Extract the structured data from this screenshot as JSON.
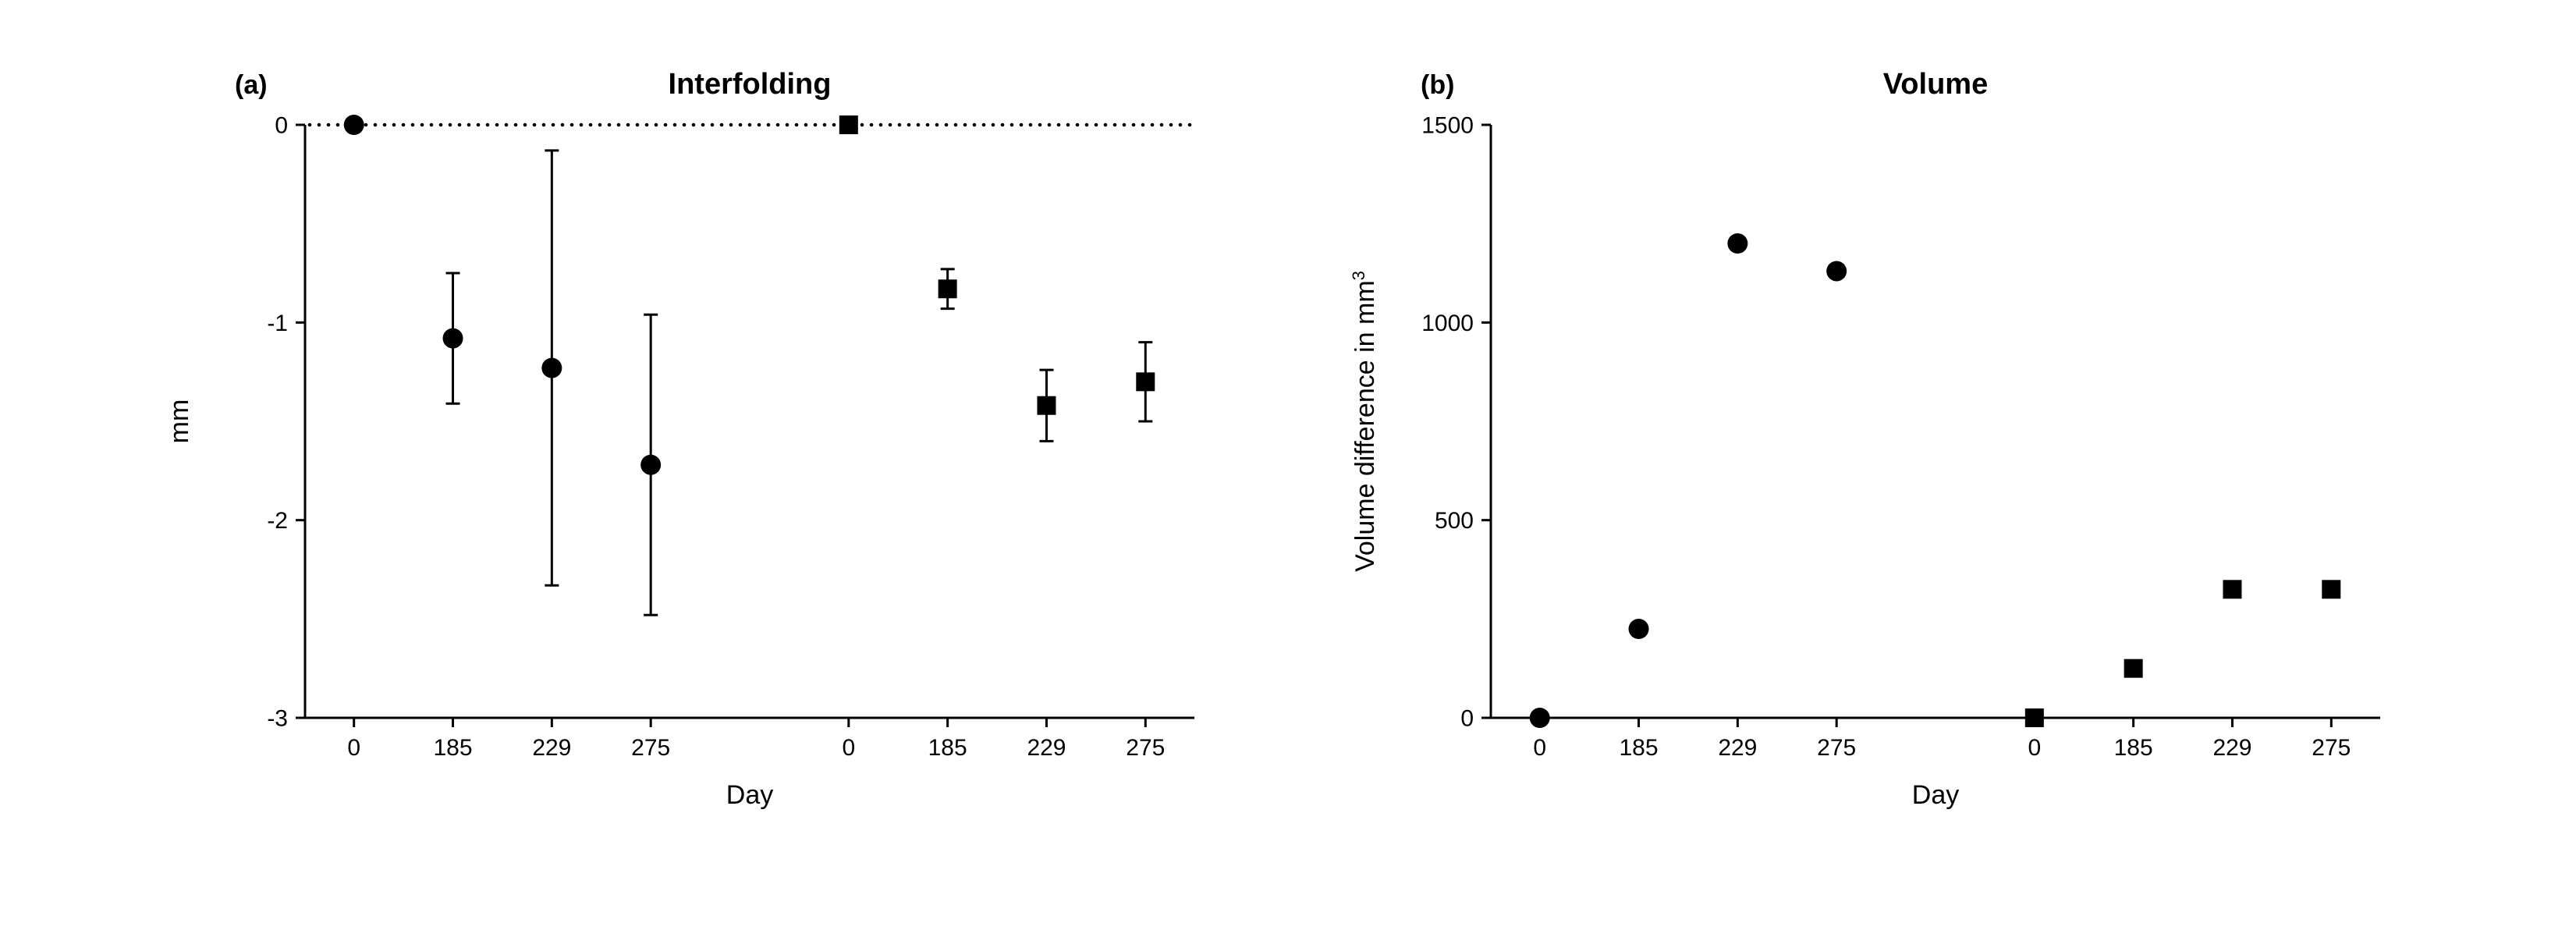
{
  "figure": {
    "background_color": "#ffffff",
    "axis_color": "#000000",
    "text_color": "#000000",
    "marker_color": "#000000",
    "font_family": "Arial, Helvetica, sans-serif",
    "panel_label_fontsize": 34,
    "title_fontsize": 38,
    "axis_label_fontsize": 34,
    "tick_label_fontsize": 30,
    "axis_stroke_width": 3,
    "tick_length": 12,
    "errorbar_stroke_width": 3,
    "errorbar_cap_width": 18,
    "circle_marker_radius": 13,
    "square_marker_size": 24
  },
  "panel_a": {
    "label": "(a)",
    "title": "Interfolding",
    "type": "scatter_errorbar",
    "xlabel": "Day",
    "ylabel": "mm",
    "ylim": [
      -3,
      0
    ],
    "ytick_step": 1,
    "yticks": [
      0,
      -1,
      -2,
      -3
    ],
    "x_categories_group1": [
      "0",
      "185",
      "229",
      "275"
    ],
    "x_categories_group2": [
      "0",
      "185",
      "229",
      "275"
    ],
    "zero_line": {
      "y": 0,
      "style": "dotted",
      "color": "#000000",
      "width": 3,
      "dot_spacing": 12,
      "dot_radius": 2.3
    },
    "series": [
      {
        "name": "group1",
        "marker": "circle",
        "points": [
          {
            "x_label": "0",
            "y": 0.0,
            "err_low": 0.0,
            "err_high": 0.0
          },
          {
            "x_label": "185",
            "y": -1.08,
            "err_low": 0.33,
            "err_high": 0.33
          },
          {
            "x_label": "229",
            "y": -1.23,
            "err_low": 1.1,
            "err_high": 1.1
          },
          {
            "x_label": "275",
            "y": -1.72,
            "err_low": 0.76,
            "err_high": 0.76
          }
        ]
      },
      {
        "name": "group2",
        "marker": "square",
        "points": [
          {
            "x_label": "0",
            "y": 0.0,
            "err_low": 0.0,
            "err_high": 0.0
          },
          {
            "x_label": "185",
            "y": -0.83,
            "err_low": 0.1,
            "err_high": 0.1
          },
          {
            "x_label": "229",
            "y": -1.42,
            "err_low": 0.18,
            "err_high": 0.18
          },
          {
            "x_label": "275",
            "y": -1.3,
            "err_low": 0.2,
            "err_high": 0.2
          }
        ]
      }
    ]
  },
  "panel_b": {
    "label": "(b)",
    "title": "Volume",
    "type": "scatter",
    "xlabel": "Day",
    "ylabel": "Volume difference in mm",
    "ylabel_sup": "3",
    "ylim": [
      0,
      1500
    ],
    "ytick_step": 500,
    "yticks": [
      0,
      500,
      1000,
      1500
    ],
    "x_categories_group1": [
      "0",
      "185",
      "229",
      "275"
    ],
    "x_categories_group2": [
      "0",
      "185",
      "229",
      "275"
    ],
    "series": [
      {
        "name": "group1",
        "marker": "circle",
        "points": [
          {
            "x_label": "0",
            "y": 0
          },
          {
            "x_label": "185",
            "y": 225
          },
          {
            "x_label": "229",
            "y": 1200
          },
          {
            "x_label": "275",
            "y": 1130
          }
        ]
      },
      {
        "name": "group2",
        "marker": "square",
        "points": [
          {
            "x_label": "0",
            "y": 0
          },
          {
            "x_label": "185",
            "y": 125
          },
          {
            "x_label": "229",
            "y": 325
          },
          {
            "x_label": "275",
            "y": 325
          }
        ]
      }
    ]
  }
}
